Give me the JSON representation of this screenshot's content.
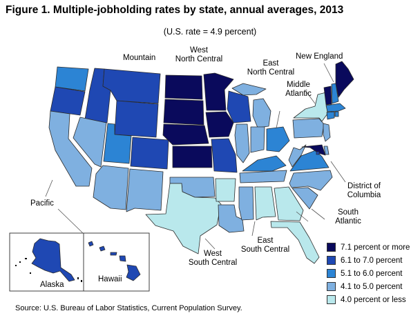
{
  "title": "Figure 1. Multiple-jobholding rates by state, annual averages, 2013",
  "subtitle": "(U.S. rate = 4.9 percent)",
  "source": "Source: U.S. Bureau of Labor Statistics, Current Population Survey.",
  "colors": {
    "c1": "#0a0a5c",
    "c2": "#1f48b3",
    "c3": "#2c84d4",
    "c4": "#7fb0e0",
    "c5": "#b9e8ec",
    "outline": "#2b2b2b",
    "leader": "#555555"
  },
  "legend": [
    {
      "key": "c1",
      "label": "7.1 percent or more"
    },
    {
      "key": "c2",
      "label": "6.1 to 7.0 percent"
    },
    {
      "key": "c3",
      "label": "5.1 to 6.0 percent"
    },
    {
      "key": "c4",
      "label": "4.1 to 5.0 percent"
    },
    {
      "key": "c5",
      "label": "4.0 percent or less"
    }
  ],
  "regions": {
    "new_england": "New England",
    "mountain": "Mountain",
    "west_north_central": [
      "West",
      "North Central"
    ],
    "east_north_central": [
      "East",
      "North Central"
    ],
    "middle_atlantic": [
      "Middle",
      "Atlantic"
    ],
    "pacific": "Pacific",
    "district_of_columbia": [
      "District of",
      "Columbia"
    ],
    "south_atlantic": [
      "South",
      "Atlantic"
    ],
    "east_south_central": [
      "East",
      "South Central"
    ],
    "west_south_central": [
      "West",
      "South Central"
    ],
    "alaska": "Alaska",
    "hawaii": "Hawaii"
  }
}
